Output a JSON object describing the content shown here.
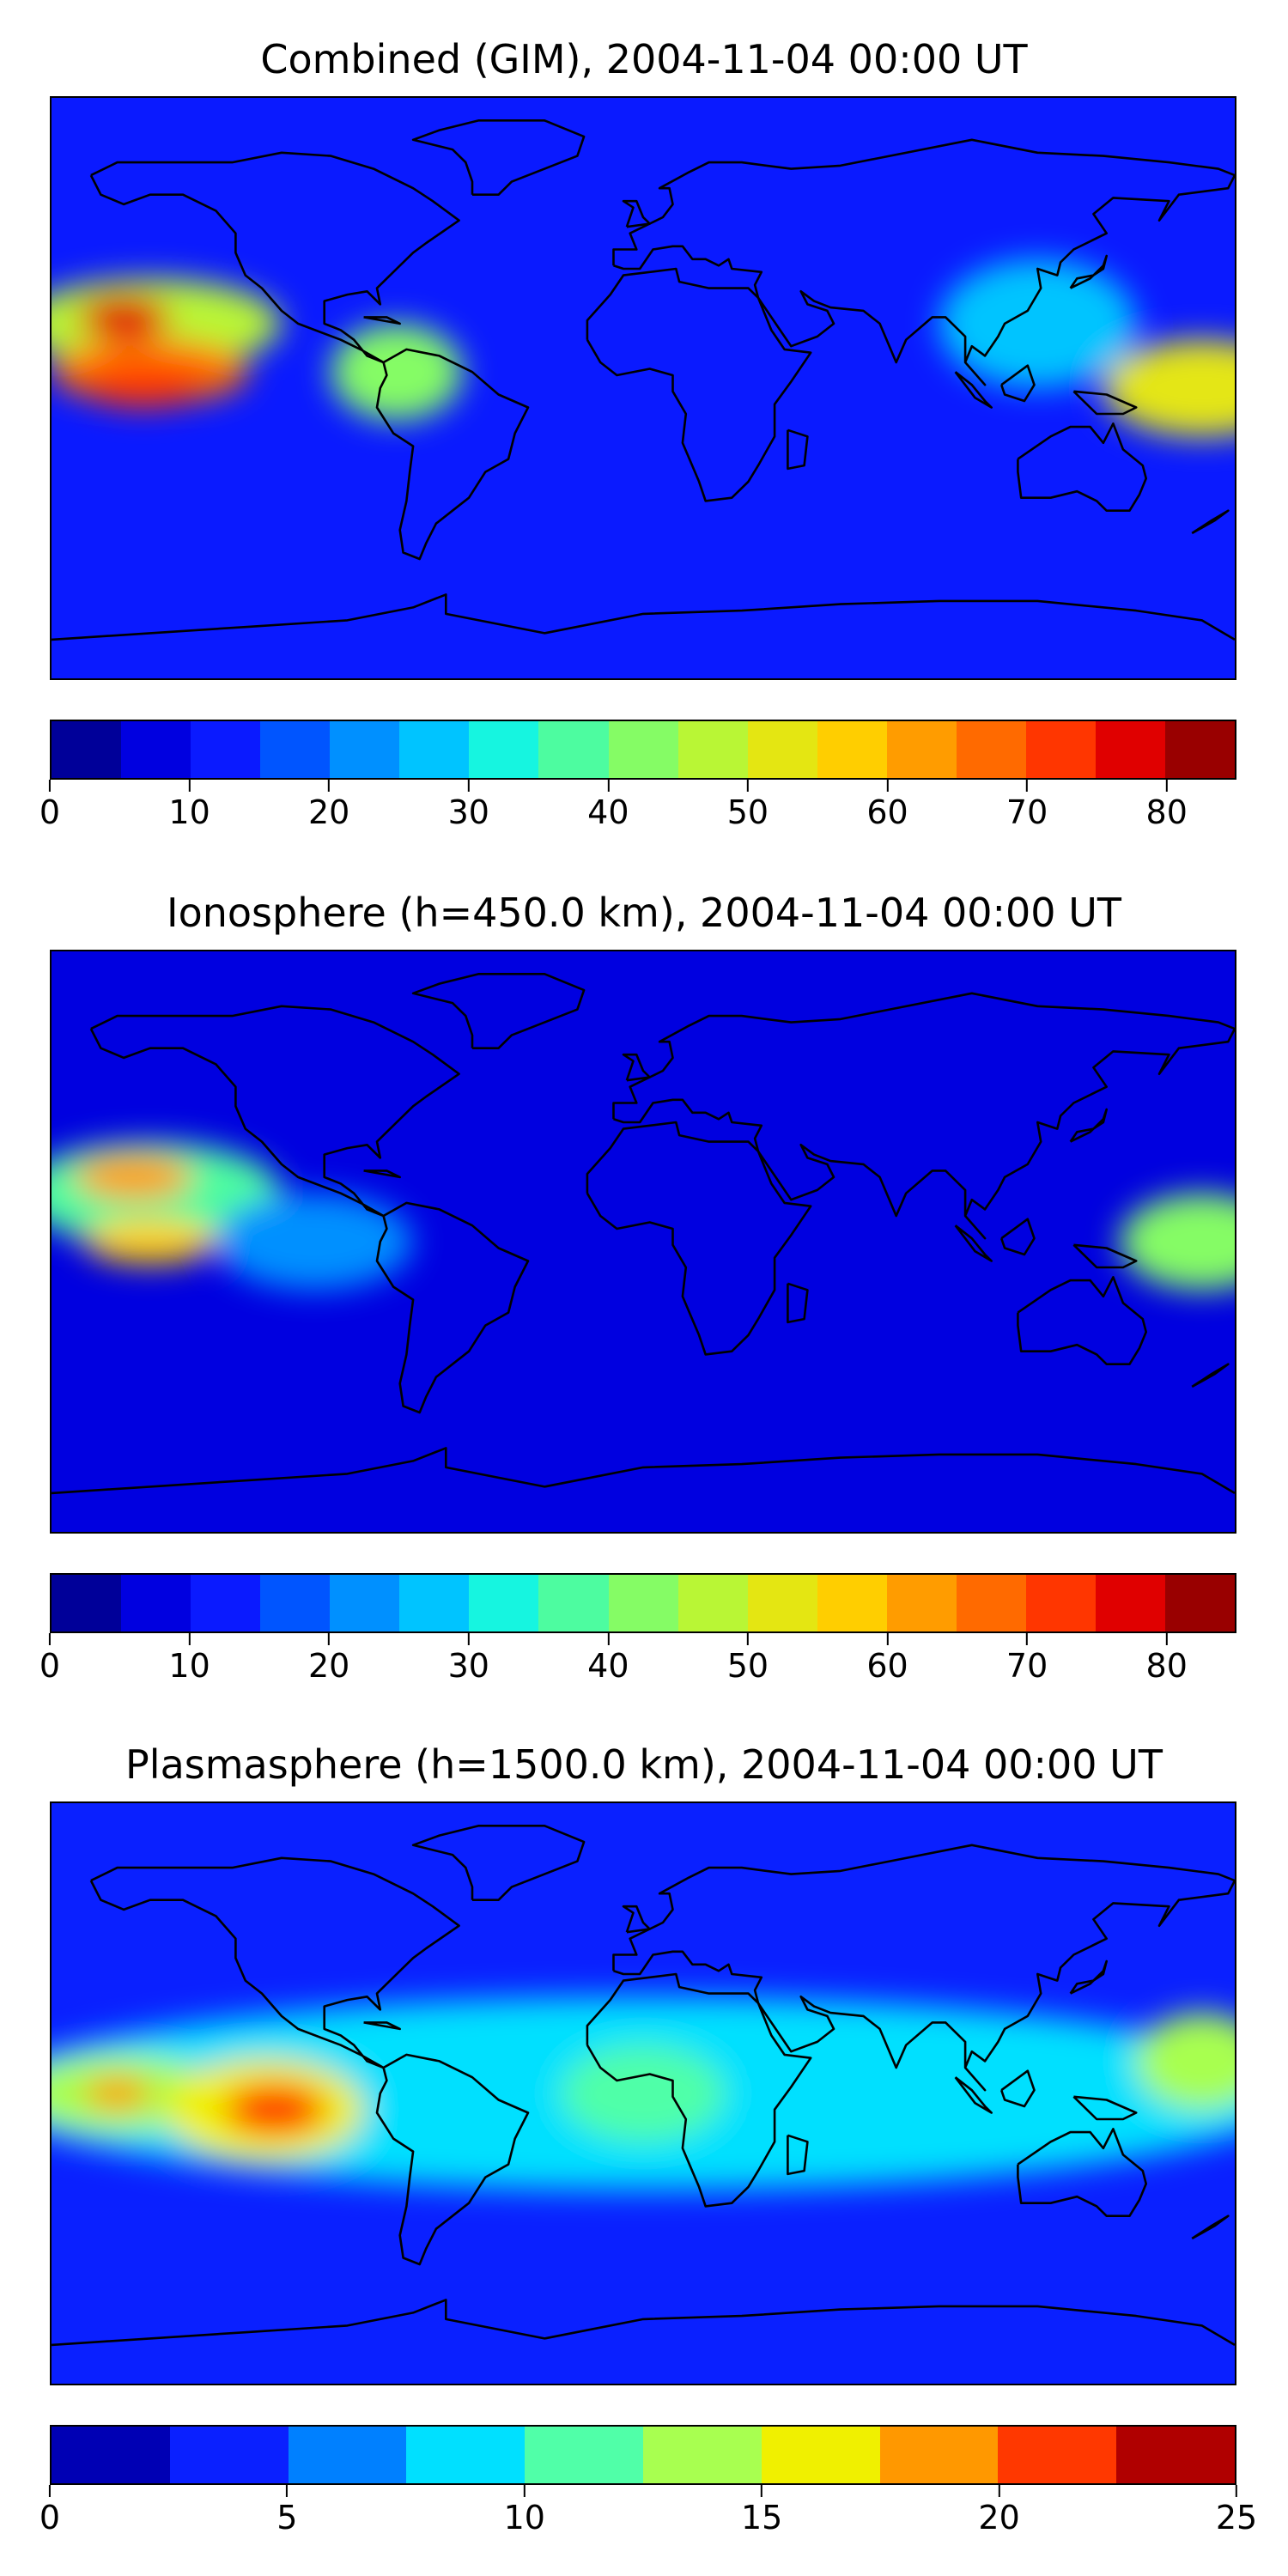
{
  "chart_data": [
    {
      "type": "heatmap",
      "title": "Combined (GIM), 2004-11-04 00:00 UT",
      "colorbar": {
        "min": 0,
        "max": 85,
        "step": 5,
        "ticks": [
          0,
          10,
          20,
          30,
          40,
          50,
          60,
          70,
          80
        ],
        "tick_labels": [
          "0",
          "10",
          "20",
          "30",
          "40",
          "50",
          "60",
          "70",
          "80"
        ],
        "colors": [
          "#000099",
          "#0000e0",
          "#0a1aff",
          "#0055ff",
          "#0090ff",
          "#00c4ff",
          "#16f5e0",
          "#4dfca0",
          "#85fc65",
          "#b9f635",
          "#e4e612",
          "#ffce00",
          "#ff9c00",
          "#ff6a00",
          "#ff3600",
          "#e00000",
          "#990000"
        ]
      },
      "background_level": 2,
      "blobs": [
        {
          "lon": -150,
          "lat": 20,
          "level": 9,
          "rx": 40,
          "ry": 14
        },
        {
          "lon": -150,
          "lat": 5,
          "level": 13,
          "rx": 30,
          "ry": 10
        },
        {
          "lon": -158,
          "lat": 22,
          "level": 15,
          "rx": 14,
          "ry": 7
        },
        {
          "lon": -152,
          "lat": 0,
          "level": 14,
          "rx": 18,
          "ry": 6
        },
        {
          "lon": -75,
          "lat": 5,
          "level": 8,
          "rx": 20,
          "ry": 15
        },
        {
          "lon": 170,
          "lat": 0,
          "level": 10,
          "rx": 30,
          "ry": 15
        },
        {
          "lon": 120,
          "lat": 20,
          "level": 5,
          "rx": 30,
          "ry": 20
        }
      ],
      "coastlines": true,
      "axes_ticks": false
    },
    {
      "type": "heatmap",
      "title": "Ionosphere  (h=450.0 km), 2004-11-04 00:00 UT",
      "colorbar": {
        "min": 0,
        "max": 85,
        "step": 5,
        "ticks": [
          0,
          10,
          20,
          30,
          40,
          50,
          60,
          70,
          80
        ],
        "tick_labels": [
          "0",
          "10",
          "20",
          "30",
          "40",
          "50",
          "60",
          "70",
          "80"
        ],
        "colors": [
          "#000099",
          "#0000e0",
          "#0a1aff",
          "#0055ff",
          "#0090ff",
          "#00c4ff",
          "#16f5e0",
          "#4dfca0",
          "#85fc65",
          "#b9f635",
          "#e4e612",
          "#ffce00",
          "#ff9c00",
          "#ff6a00",
          "#ff3600",
          "#e00000",
          "#990000"
        ]
      },
      "background_level": 1,
      "blobs": [
        {
          "lon": -150,
          "lat": 15,
          "level": 7,
          "rx": 40,
          "ry": 16
        },
        {
          "lon": -155,
          "lat": 20,
          "level": 12,
          "rx": 18,
          "ry": 7
        },
        {
          "lon": -150,
          "lat": 0,
          "level": 11,
          "rx": 20,
          "ry": 7
        },
        {
          "lon": -100,
          "lat": 0,
          "level": 4,
          "rx": 30,
          "ry": 15
        },
        {
          "lon": 170,
          "lat": 0,
          "level": 8,
          "rx": 25,
          "ry": 15
        }
      ],
      "coastlines": true,
      "axes_ticks": false
    },
    {
      "type": "heatmap",
      "title": "Plasmasphere (h=1500.0 km), 2004-11-04 00:00 UT",
      "colorbar": {
        "min": 0,
        "max": 25,
        "step": 2.5,
        "ticks": [
          0,
          5,
          10,
          15,
          20,
          25
        ],
        "tick_labels": [
          "0",
          "5",
          "10",
          "15",
          "20",
          "25"
        ],
        "colors": [
          "#0000b4",
          "#0a20ff",
          "#0080ff",
          "#00e0ff",
          "#50ffa8",
          "#a8ff50",
          "#f0f000",
          "#ff9800",
          "#ff3800",
          "#b00000"
        ]
      },
      "background_level": 1,
      "blobs": [
        {
          "lon": 0,
          "lat": 0,
          "level": 3,
          "rx": 200,
          "ry": 30
        },
        {
          "lon": -160,
          "lat": 0,
          "level": 5,
          "rx": 30,
          "ry": 12
        },
        {
          "lon": -160,
          "lat": 0,
          "level": 7,
          "rx": 10,
          "ry": 5
        },
        {
          "lon": -115,
          "lat": -5,
          "level": 6,
          "rx": 30,
          "ry": 16
        },
        {
          "lon": -112,
          "lat": -5,
          "level": 8,
          "rx": 15,
          "ry": 8
        },
        {
          "lon": 0,
          "lat": 0,
          "level": 4,
          "rx": 25,
          "ry": 15
        },
        {
          "lon": 170,
          "lat": 10,
          "level": 5,
          "rx": 20,
          "ry": 15
        }
      ],
      "coastlines": true,
      "axes_ticks": false
    }
  ]
}
